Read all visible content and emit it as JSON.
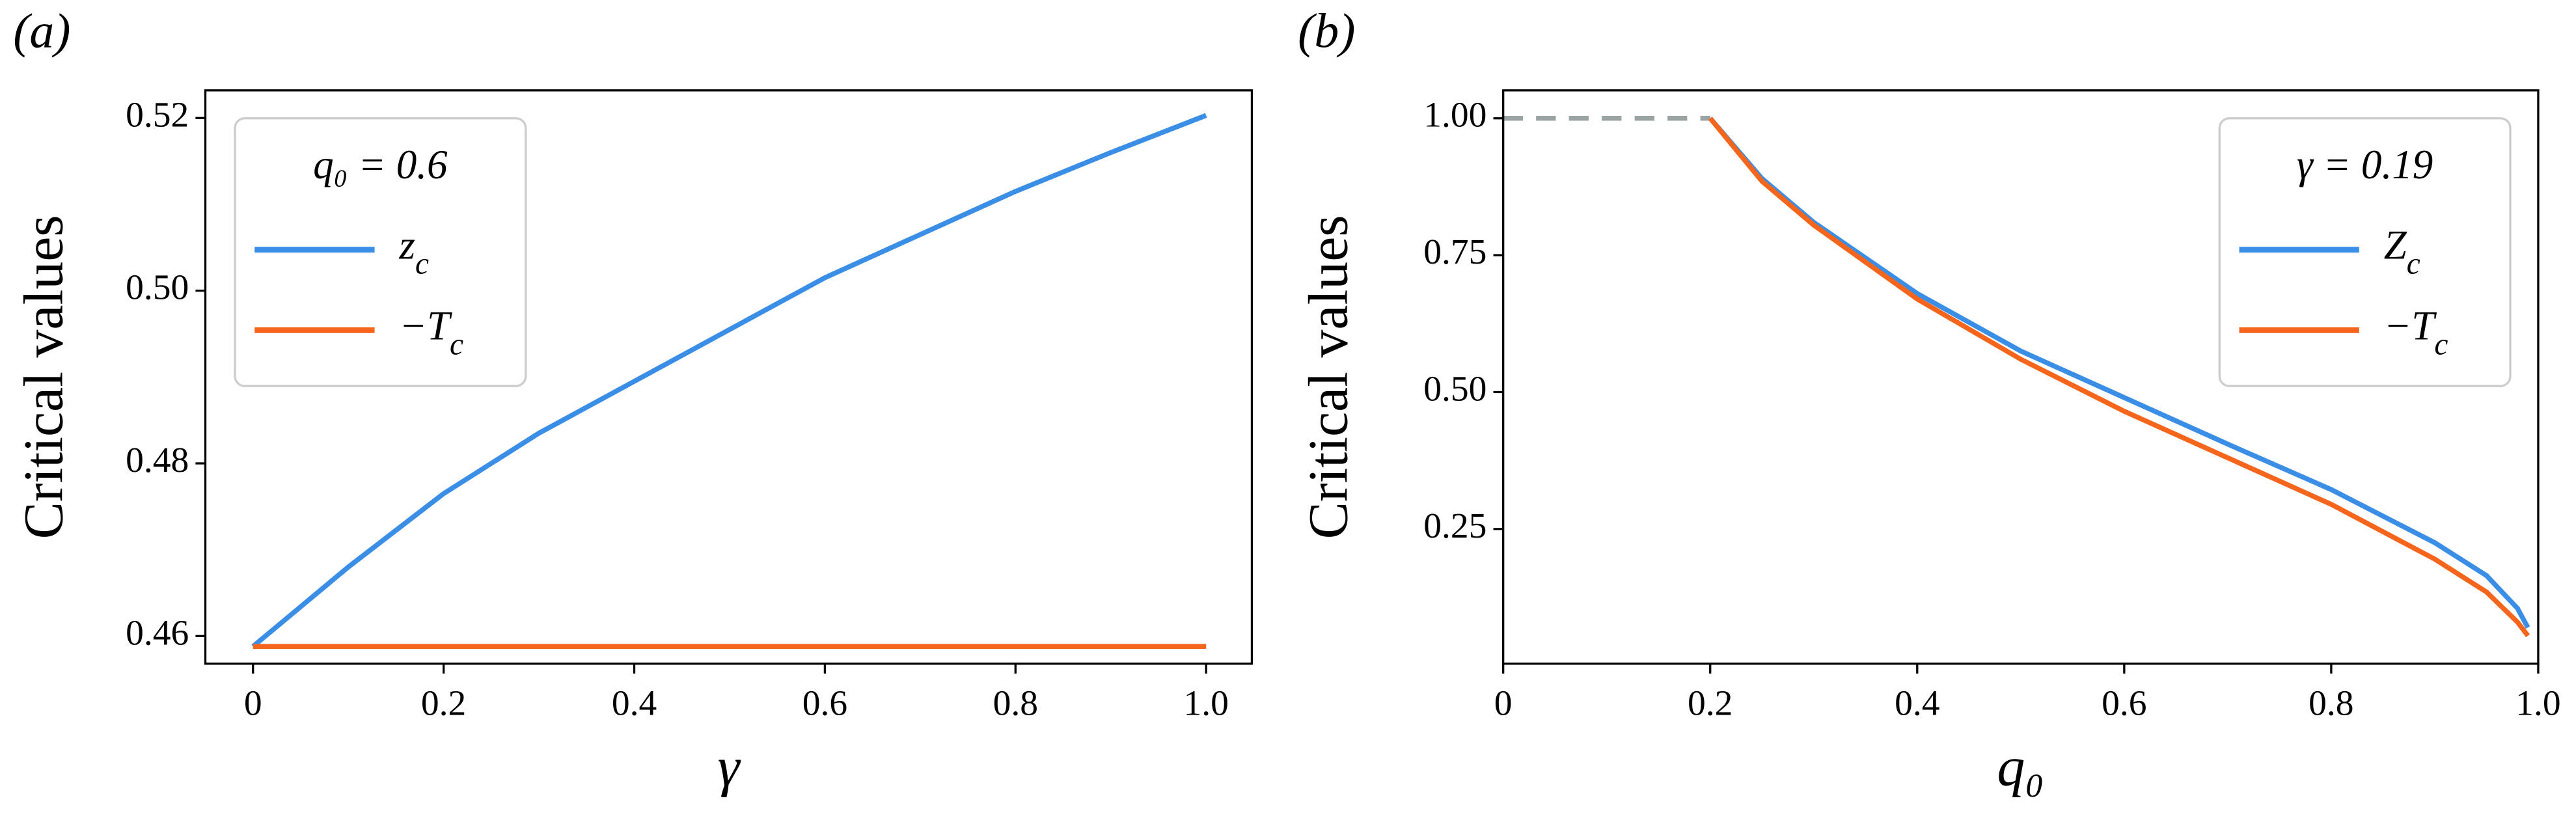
{
  "chart_data": [
    {
      "type": "line",
      "panel_label": "(a)",
      "x_label": "γ",
      "y_label": "Critical values",
      "legend_title": "q₀ = 0.6",
      "legend": "upper left",
      "x": [
        0,
        0.1,
        0.2,
        0.3,
        0.4,
        0.5,
        0.6,
        0.7,
        0.8,
        0.9,
        1.0
      ],
      "series": [
        {
          "name": "z_c",
          "color": "#3a8ee6",
          "values": [
            0.4588,
            0.468,
            0.4765,
            0.4835,
            0.4895,
            0.4955,
            0.5015,
            0.5065,
            0.5115,
            0.516,
            0.5203
          ]
        },
        {
          "name": "−T_c",
          "color": "#f5661c",
          "values": [
            0.4588,
            0.4588,
            0.4588,
            0.4588,
            0.4588,
            0.4588,
            0.4588,
            0.4588,
            0.4588,
            0.4588,
            0.4588
          ]
        }
      ],
      "xlim": [
        -0.05,
        1.048
      ],
      "ylim": [
        0.4568,
        0.5232
      ],
      "xticks": [
        0,
        0.2,
        0.4,
        0.6,
        0.8,
        {
          "value": 1,
          "label": "1.0"
        }
      ],
      "yticks": [
        0.46,
        0.48,
        {
          "value": 0.5,
          "label": "0.50"
        },
        0.52
      ]
    },
    {
      "type": "line",
      "panel_label": "(b)",
      "x_label": "q₀",
      "y_label": "Critical values",
      "legend_title": "γ = 0.19",
      "legend": "upper right",
      "x": [
        0.2,
        0.25,
        0.3,
        0.4,
        0.5,
        0.6,
        0.7,
        0.8,
        0.9,
        0.95,
        0.98,
        0.99
      ],
      "series": [
        {
          "name": "Z_c",
          "color": "#3a8ee6",
          "values": [
            1.0,
            0.89,
            0.81,
            0.68,
            0.575,
            0.49,
            0.405,
            0.322,
            0.225,
            0.165,
            0.105,
            0.07
          ]
        },
        {
          "name": "−T_c",
          "color": "#f5661c",
          "values": [
            1.0,
            0.885,
            0.805,
            0.67,
            0.56,
            0.465,
            0.38,
            0.295,
            0.195,
            0.135,
            0.08,
            0.055
          ]
        }
      ],
      "reference": {
        "x": [
          0,
          0.2
        ],
        "values": [
          1.0,
          1.0
        ],
        "color": "#9aa3a3",
        "dashed": true
      },
      "xlim": [
        0,
        1.0
      ],
      "ylim": [
        0.004,
        1.051
      ],
      "xticks": [
        0,
        0.2,
        0.4,
        0.6,
        0.8,
        {
          "value": 1,
          "label": "1.0"
        }
      ],
      "yticks": [
        {
          "value": 0.25,
          "label": "0.25"
        },
        {
          "value": 0.5,
          "label": "0.50"
        },
        {
          "value": 0.75,
          "label": "0.75"
        },
        {
          "value": 1,
          "label": "1.00"
        }
      ]
    }
  ]
}
